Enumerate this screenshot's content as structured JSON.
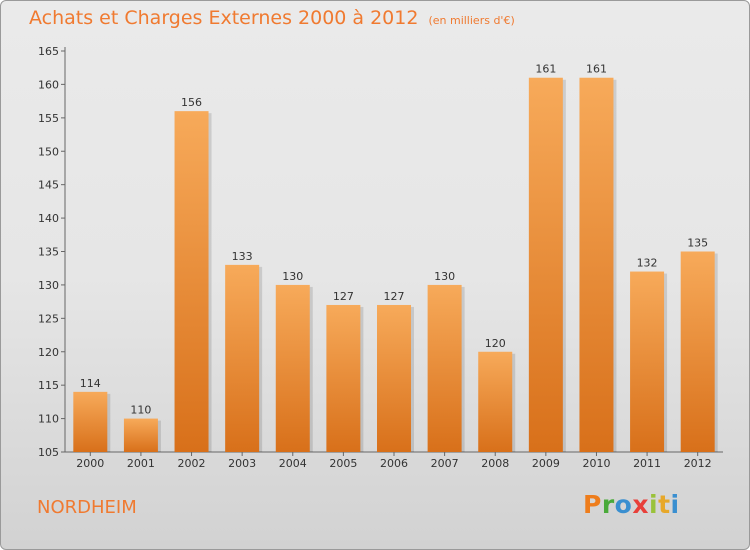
{
  "header": {
    "title": "Achats et Charges Externes 2000 à 2012",
    "subtitle": "(en milliers d'€)"
  },
  "footer": {
    "city": "NORDHEIM",
    "brand_letters": [
      "P",
      "r",
      "o",
      "x",
      "i",
      "t",
      "i"
    ]
  },
  "colors": {
    "title": "#f07a30",
    "bar_light": "#f7aa5a",
    "bar_dark": "#d8701a",
    "brand": [
      "#ee7d1c",
      "#4aaa3a",
      "#3a8fd0",
      "#e8403a",
      "#9ac23a",
      "#e7a82a",
      "#3a8fd0"
    ]
  },
  "chart_data": {
    "type": "bar",
    "title": "Achats et Charges Externes 2000 à 2012",
    "subtitle": "(en milliers d'€)",
    "categories": [
      "2000",
      "2001",
      "2002",
      "2003",
      "2004",
      "2005",
      "2006",
      "2007",
      "2008",
      "2009",
      "2010",
      "2011",
      "2012"
    ],
    "values": [
      114,
      110,
      156,
      133,
      130,
      127,
      127,
      130,
      120,
      161,
      161,
      132,
      135
    ],
    "ylim": [
      105,
      165
    ],
    "yticks": [
      105,
      110,
      115,
      120,
      125,
      130,
      135,
      140,
      145,
      150,
      155,
      160,
      165
    ],
    "grid": false,
    "data_labels": true
  }
}
